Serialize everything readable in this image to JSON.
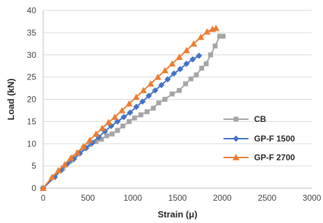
{
  "chart_data": {
    "type": "line",
    "xlabel": "Strain (μ)",
    "ylabel": "Load (kN)",
    "xlim": [
      0,
      3000
    ],
    "ylim": [
      0,
      40
    ],
    "x_ticks": [
      0,
      500,
      1000,
      1500,
      2000,
      2500,
      3000
    ],
    "y_ticks": [
      0,
      5,
      10,
      15,
      20,
      25,
      30,
      35,
      40
    ],
    "grid": "horizontal",
    "legend_position": "right",
    "series": [
      {
        "name": "CB",
        "color": "#a5a5a5",
        "marker": "square",
        "x": [
          0,
          120,
          220,
          300,
          350,
          400,
          450,
          520,
          590,
          650,
          710,
          770,
          830,
          890,
          960,
          1020,
          1090,
          1160,
          1230,
          1290,
          1360,
          1440,
          1520,
          1590,
          1650,
          1710,
          1770,
          1820,
          1870,
          1920,
          1970,
          2010
        ],
        "y": [
          0,
          2.5,
          4.5,
          6,
          7,
          8,
          9,
          9.8,
          10.5,
          11,
          11.8,
          12.2,
          13,
          14,
          15,
          15.8,
          16.5,
          17.2,
          18,
          19.2,
          20,
          21.2,
          22,
          23.5,
          24.6,
          25.5,
          27,
          28,
          30,
          32,
          34.2,
          34.2
        ]
      },
      {
        "name": "GP-F 1500",
        "color": "#4472c4",
        "marker": "diamond",
        "x": [
          0,
          130,
          200,
          270,
          340,
          410,
          480,
          550,
          620,
          690,
          760,
          830,
          900,
          970,
          1040,
          1110,
          1180,
          1250,
          1320,
          1390,
          1460,
          1530,
          1600,
          1670,
          1740
        ],
        "y": [
          0,
          2.5,
          4,
          5.5,
          6.5,
          7.8,
          9,
          10.2,
          11.5,
          12.8,
          14,
          15,
          16,
          17,
          18.3,
          19.5,
          20.8,
          22,
          23.2,
          24.5,
          25.8,
          26.8,
          28,
          29,
          29.8
        ]
      },
      {
        "name": "GP-F 2700",
        "color": "#ed7d31",
        "marker": "triangle",
        "x": [
          0,
          100,
          170,
          240,
          310,
          380,
          450,
          520,
          590,
          660,
          730,
          800,
          880,
          960,
          1040,
          1120,
          1200,
          1280,
          1360,
          1440,
          1520,
          1600,
          1680,
          1760,
          1830,
          1890,
          1930
        ],
        "y": [
          0,
          2.5,
          4,
          5.3,
          6.8,
          8,
          9.4,
          10.8,
          12.2,
          13.5,
          14.8,
          16,
          17.5,
          19,
          20.5,
          22,
          23.5,
          25,
          26.5,
          28,
          29.5,
          31,
          32.5,
          34,
          35.2,
          35.8,
          36
        ]
      }
    ]
  }
}
